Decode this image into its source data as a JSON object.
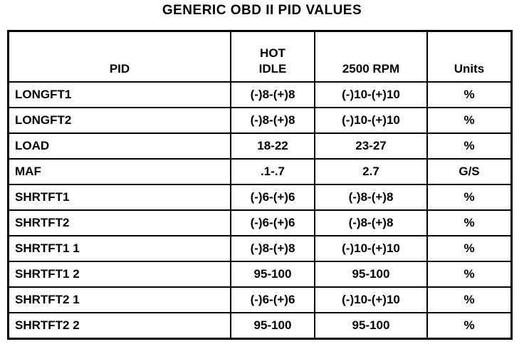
{
  "title": "GENERIC OBD II PID VALUES",
  "table": {
    "header": [
      "PID",
      "HOT\nIDLE",
      "2500 RPM",
      "Units"
    ],
    "rows": [
      [
        "LONGFT1",
        "(-)8-(+)8",
        "(-)10-(+)10",
        "%"
      ],
      [
        "LONGFT2",
        "(-)8-(+)8",
        "(-)10-(+)10",
        "%"
      ],
      [
        "LOAD",
        "18-22",
        "23-27",
        "%"
      ],
      [
        "MAF",
        ".1-.7",
        "2.7",
        "G/S"
      ],
      [
        "SHRTFT1",
        "(-)6-(+)6",
        "(-)8-(+)8",
        "%"
      ],
      [
        "SHRTFT2",
        "(-)6-(+)6",
        "(-)8-(+)8",
        "%"
      ],
      [
        "SHRTFT1 1",
        "(-)8-(+)8",
        "(-)10-(+)10",
        "%"
      ],
      [
        "SHRTFT1 2",
        "95-100",
        "95-100",
        "%"
      ],
      [
        "SHRTFT2 1",
        "(-)6-(+)6",
        "(-)10-(+)10",
        "%"
      ],
      [
        "SHRTFT2 2",
        "95-100",
        "95-100",
        "%"
      ]
    ]
  }
}
